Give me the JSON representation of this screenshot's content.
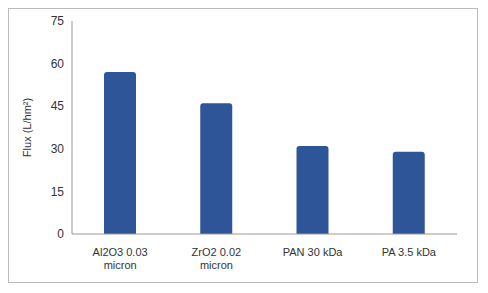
{
  "chart_data": {
    "type": "bar",
    "categories": [
      "Al2O3 0.03 micron",
      "ZrO2 0.02 micron",
      "PAN 30 kDa",
      "PA 3.5 kDa"
    ],
    "values": [
      57,
      46,
      31,
      29
    ],
    "color": "#2e5597",
    "y_label": "Flux (L/hm²)",
    "ylim": [
      0,
      75
    ],
    "yticks": [
      0,
      15,
      30,
      45,
      60,
      75
    ],
    "grid": false
  }
}
